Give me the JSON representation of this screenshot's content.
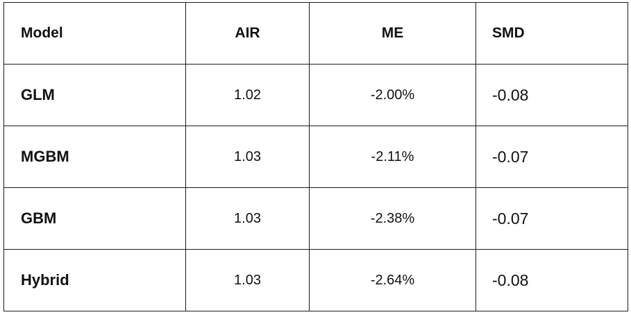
{
  "table": {
    "headers": {
      "model": "Model",
      "air": "AIR",
      "me": "ME",
      "smd": "SMD"
    },
    "rows": [
      {
        "model": "GLM",
        "air": "1.02",
        "me": "-2.00%",
        "smd": "-0.08"
      },
      {
        "model": "MGBM",
        "air": "1.03",
        "me": "-2.11%",
        "smd": "-0.07"
      },
      {
        "model": "GBM",
        "air": "1.03",
        "me": "-2.38%",
        "smd": "-0.07"
      },
      {
        "model": "Hybrid",
        "air": "1.03",
        "me": "-2.64%",
        "smd": "-0.08"
      }
    ]
  }
}
